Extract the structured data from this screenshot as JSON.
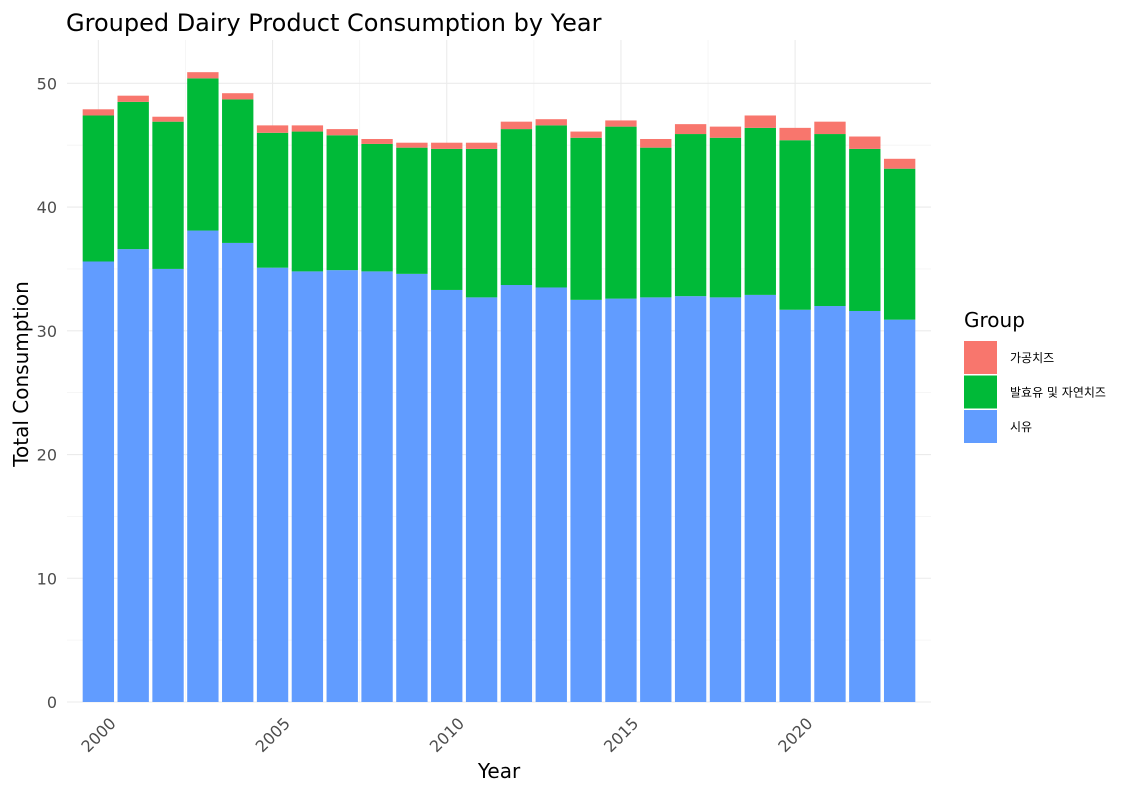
{
  "chart_data": {
    "type": "bar",
    "stacked": true,
    "title": "Grouped Dairy Product Consumption by Year",
    "xlabel": "Year",
    "ylabel": "Total Consumption",
    "legend_title": "Group",
    "legend_position": "right",
    "grid": true,
    "xlim": [
      1999.1,
      2023.9
    ],
    "ylim": [
      0,
      53.5
    ],
    "x_ticks": [
      2000,
      2005,
      2010,
      2015,
      2020
    ],
    "y_ticks": [
      0,
      10,
      20,
      30,
      40,
      50
    ],
    "categories": [
      2000,
      2001,
      2002,
      2003,
      2004,
      2005,
      2006,
      2007,
      2008,
      2009,
      2010,
      2011,
      2012,
      2013,
      2014,
      2015,
      2016,
      2017,
      2018,
      2019,
      2020,
      2021,
      2022,
      2023
    ],
    "series": [
      {
        "name": "시유",
        "color": "#619CFF",
        "values": [
          35.6,
          36.6,
          35.0,
          38.1,
          37.1,
          35.1,
          34.8,
          34.9,
          34.8,
          34.6,
          33.3,
          32.7,
          33.7,
          33.5,
          32.5,
          32.6,
          32.7,
          32.8,
          32.7,
          32.9,
          31.7,
          32.0,
          31.6,
          30.9
        ]
      },
      {
        "name": "발효유 및 자연치즈",
        "color": "#00BA38",
        "values": [
          11.8,
          11.9,
          11.9,
          12.3,
          11.6,
          10.9,
          11.3,
          10.9,
          10.3,
          10.2,
          11.4,
          12.0,
          12.6,
          13.1,
          13.1,
          13.9,
          12.1,
          13.1,
          12.9,
          13.5,
          13.7,
          13.9,
          13.1,
          12.2
        ]
      },
      {
        "name": "가공치즈",
        "color": "#F8766D",
        "values": [
          0.5,
          0.5,
          0.4,
          0.5,
          0.5,
          0.6,
          0.5,
          0.5,
          0.4,
          0.4,
          0.5,
          0.5,
          0.6,
          0.5,
          0.5,
          0.5,
          0.7,
          0.8,
          0.9,
          1.0,
          1.0,
          1.0,
          1.0,
          0.8
        ]
      }
    ],
    "legend_order": [
      "가공치즈",
      "발효유 및 자연치즈",
      "시유"
    ]
  }
}
